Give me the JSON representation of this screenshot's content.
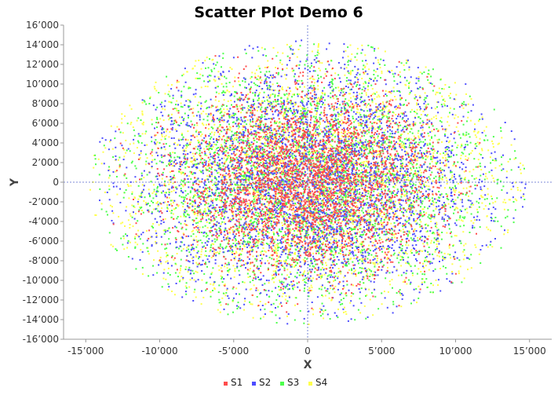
{
  "chart_data": {
    "type": "scatter",
    "title": "Scatter Plot Demo 6",
    "xlabel": "X",
    "ylabel": "Y",
    "xlim": [
      -16500,
      16500
    ],
    "ylim": [
      -16000,
      16000
    ],
    "x_ticks": [
      -15000,
      -10000,
      -5000,
      0,
      5000,
      10000,
      15000
    ],
    "x_tick_labels": [
      "-15’000",
      "-10’000",
      "-5’000",
      "0",
      "5’000",
      "10’000",
      "15’000"
    ],
    "y_ticks": [
      16000,
      14000,
      12000,
      10000,
      8000,
      6000,
      4000,
      2000,
      0,
      -2000,
      -4000,
      -6000,
      -8000,
      -10000,
      -12000,
      -14000,
      -16000
    ],
    "y_tick_labels": [
      "16’000",
      "14’000",
      "12’000",
      "10’000",
      "8’000",
      "6’000",
      "4’000",
      "2’000",
      "0",
      "-2’000",
      "-4’000",
      "-6’000",
      "-8’000",
      "-10’000",
      "-12’000",
      "-14’000",
      "-16’000"
    ],
    "zero_lines": true,
    "legend_position": "bottom",
    "series": [
      {
        "name": "S1",
        "color": "#ff4c4c",
        "distribution": "gaussian",
        "mean_x": 0,
        "mean_y": 0,
        "sigma_x": 4200,
        "sigma_y": 4500,
        "clip_radius_x": 14800,
        "clip_radius_y": 14500
      },
      {
        "name": "S2",
        "color": "#4c4cff",
        "distribution": "gaussian",
        "mean_x": 0,
        "mean_y": 0,
        "sigma_x": 5600,
        "sigma_y": 6000,
        "clip_radius_x": 14800,
        "clip_radius_y": 14500
      },
      {
        "name": "S3",
        "color": "#4cff4c",
        "distribution": "gaussian",
        "mean_x": 0,
        "mean_y": 0,
        "sigma_x": 6200,
        "sigma_y": 6200,
        "clip_radius_x": 14800,
        "clip_radius_y": 14500
      },
      {
        "name": "S4",
        "color": "#ffff4c",
        "distribution": "gaussian",
        "mean_x": 0,
        "mean_y": 0,
        "sigma_x": 6800,
        "sigma_y": 6600,
        "clip_radius_x": 14800,
        "clip_radius_y": 14500
      }
    ]
  }
}
